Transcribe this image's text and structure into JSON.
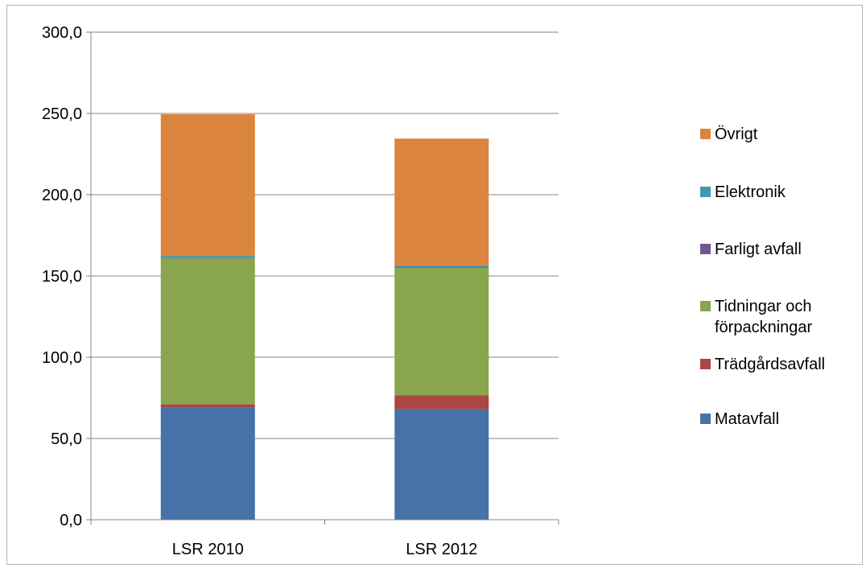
{
  "chart_data": {
    "type": "bar",
    "stacked": true,
    "categories": [
      "LSR 2010",
      "LSR 2012"
    ],
    "series": [
      {
        "name": "Matavfall",
        "color": "#4672A8",
        "values": [
          69.0,
          68.0
        ]
      },
      {
        "name": "Trädgårdsavfall",
        "color": "#AA4643",
        "values": [
          2.0,
          8.5
        ]
      },
      {
        "name": "Tidningar och förpackningar",
        "color": "#89A54E",
        "values": [
          90.0,
          78.5
        ]
      },
      {
        "name": "Farligt avfall",
        "color": "#71588F",
        "values": [
          0.5,
          0.5
        ]
      },
      {
        "name": "Elektronik",
        "color": "#4198AF",
        "values": [
          1.0,
          1.0
        ]
      },
      {
        "name": "Övrigt",
        "color": "#DB843D",
        "values": [
          87.0,
          78.0
        ]
      }
    ],
    "ylim": [
      0,
      300
    ],
    "yticks": [
      "0,0",
      "50,0",
      "100,0",
      "150,0",
      "200,0",
      "250,0",
      "300,0"
    ],
    "grid": true,
    "legend_position": "right",
    "legend_order": [
      "Övrigt",
      "Elektronik",
      "Farligt avfall",
      "Tidningar och förpackningar",
      "Trädgårdsavfall",
      "Matavfall"
    ]
  }
}
